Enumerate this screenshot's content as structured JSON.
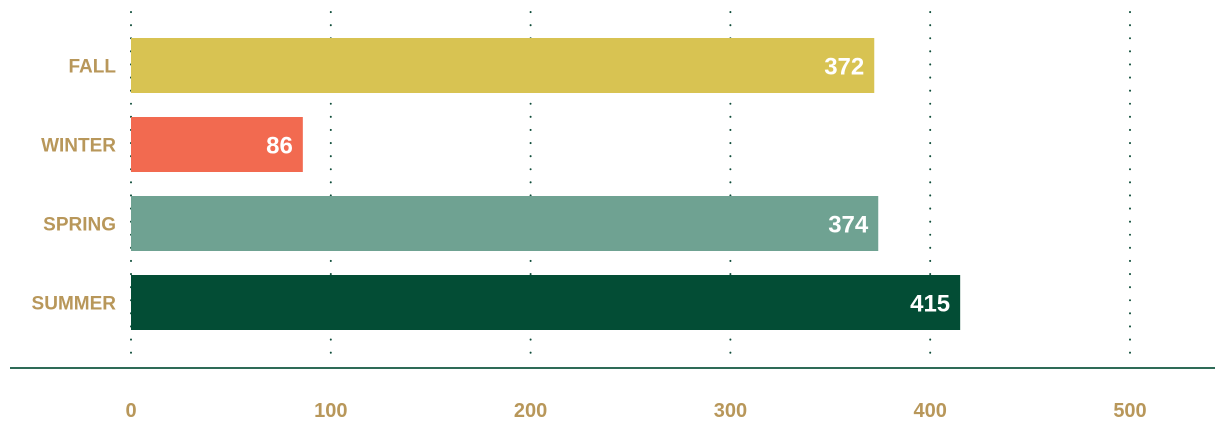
{
  "colors": {
    "label": "#B8975A",
    "grid": "#0F4D3A",
    "axis_line": "#2E6B57",
    "value_text": "#FFFFFF"
  },
  "chart_data": {
    "type": "bar",
    "orientation": "horizontal",
    "categories": [
      "FALL",
      "WINTER",
      "SPRING",
      "SUMMER"
    ],
    "values": [
      372,
      86,
      374,
      415
    ],
    "bar_colors": [
      "#D8C352",
      "#F26A50",
      "#6FA292",
      "#034D35"
    ],
    "xlim": [
      0,
      500
    ],
    "x_ticks": [
      0,
      100,
      200,
      300,
      400,
      500
    ],
    "x_tick_labels": [
      "0",
      "100",
      "200",
      "300",
      "400",
      "500"
    ],
    "value_labels": [
      "372",
      "86",
      "374",
      "415"
    ],
    "grid": "vertical-dotted",
    "legend": "none"
  }
}
